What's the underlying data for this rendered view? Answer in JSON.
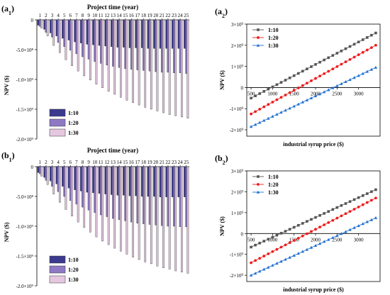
{
  "chart_data": [
    {
      "id": "a1",
      "type": "bar",
      "panel_label": "(a",
      "panel_sub": "1",
      "title": "Project time (year)",
      "ylabel": "NPV ($)",
      "categories": [
        "1",
        "2",
        "3",
        "4",
        "5",
        "6",
        "7",
        "8",
        "9",
        "10",
        "11",
        "12",
        "13",
        "14",
        "15",
        "16",
        "17",
        "18",
        "19",
        "20",
        "21",
        "22",
        "23",
        "24",
        "25"
      ],
      "ylim": [
        -2000000000.0,
        0
      ],
      "yticks": [
        0,
        -500000000.0,
        -1000000000.0,
        -1500000000.0,
        -2000000000.0
      ],
      "ytick_labels": [
        "0",
        "-5.0×10⁸",
        "-1.0×10⁹",
        "-1.5×10⁹",
        "-2.0×10⁹"
      ],
      "legend": "bottom-left",
      "series": [
        {
          "name": "1:10",
          "color": "#3b3a8f",
          "values": [
            -90000000.0,
            -160000000.0,
            -220000000.0,
            -270000000.0,
            -310000000.0,
            -340000000.0,
            -370000000.0,
            -390000000.0,
            -410000000.0,
            -420000000.0,
            -430000000.0,
            -440000000.0,
            -450000000.0,
            -460000000.0,
            -460000000.0,
            -470000000.0,
            -470000000.0,
            -470000000.0,
            -480000000.0,
            -480000000.0,
            -480000000.0,
            -480000000.0,
            -480000000.0,
            -480000000.0,
            -480000000.0
          ]
        },
        {
          "name": "1:20",
          "color": "#8f79c4",
          "values": [
            -110000000.0,
            -210000000.0,
            -290000000.0,
            -380000000.0,
            -450000000.0,
            -510000000.0,
            -570000000.0,
            -620000000.0,
            -660000000.0,
            -700000000.0,
            -730000000.0,
            -760000000.0,
            -780000000.0,
            -800000000.0,
            -820000000.0,
            -830000000.0,
            -840000000.0,
            -850000000.0,
            -860000000.0,
            -870000000.0,
            -880000000.0,
            -880000000.0,
            -890000000.0,
            -890000000.0,
            -900000000.0
          ]
        },
        {
          "name": "1:30",
          "color": "#e5c8e0",
          "values": [
            -140000000.0,
            -270000000.0,
            -430000000.0,
            -550000000.0,
            -670000000.0,
            -770000000.0,
            -860000000.0,
            -940000000.0,
            -1010000000.0,
            -1080000000.0,
            -1140000000.0,
            -1200000000.0,
            -1250000000.0,
            -1300000000.0,
            -1350000000.0,
            -1390000000.0,
            -1430000000.0,
            -1470000000.0,
            -1500000000.0,
            -1530000000.0,
            -1560000000.0,
            -1590000000.0,
            -1610000000.0,
            -1630000000.0,
            -1650000000.0
          ]
        }
      ]
    },
    {
      "id": "a2",
      "type": "line",
      "panel_label": "(a",
      "panel_sub": "2",
      "xlabel": "industrial syrup price ($)",
      "ylabel": "NPV ($)",
      "xlim": [
        400,
        3500
      ],
      "ylim": [
        -2300000000.0,
        3000000000.0
      ],
      "xticks": [
        500,
        1000,
        1500,
        2000,
        2500,
        3000
      ],
      "yticks": [
        3000000000.0,
        2000000000.0,
        1000000000.0,
        0,
        -1000000000.0,
        -2000000000.0
      ],
      "ytick_base": [
        "3×10",
        "2×10",
        "1×10",
        "0",
        "-1×10",
        "-2×10"
      ],
      "ytick_exp": [
        "9",
        "9",
        "9",
        "",
        "9",
        "9"
      ],
      "legend": "top-left",
      "x_range": [
        500,
        3400
      ],
      "series": [
        {
          "name": "1:10",
          "color": "#555555",
          "marker": "square",
          "y_start": -500000000.0,
          "y_end": 2580000000.0
        },
        {
          "name": "1:20",
          "color": "#ee1c1c",
          "marker": "circle",
          "y_start": -1250000000.0,
          "y_end": 2000000000.0
        },
        {
          "name": "1:30",
          "color": "#1f6fd1",
          "marker": "triangle",
          "y_start": -1850000000.0,
          "y_end": 950000000.0
        }
      ]
    },
    {
      "id": "b1",
      "type": "bar",
      "panel_label": "(b",
      "panel_sub": "1",
      "title": "Project time (year)",
      "ylabel": "NPV ($)",
      "categories": [
        "1",
        "2",
        "3",
        "4",
        "5",
        "6",
        "7",
        "8",
        "9",
        "10",
        "11",
        "12",
        "13",
        "14",
        "15",
        "16",
        "17",
        "18",
        "19",
        "20",
        "21",
        "22",
        "23",
        "24",
        "25"
      ],
      "ylim": [
        -2000000000.0,
        0
      ],
      "yticks": [
        0,
        -500000000.0,
        -1000000000.0,
        -1500000000.0,
        -2000000000.0
      ],
      "ytick_labels": [
        "0",
        "-5.0×10⁸",
        "-1.0×10⁹",
        "-1.5×10⁹",
        "-2.0×10⁹"
      ],
      "legend": "bottom-left",
      "series": [
        {
          "name": "1:10",
          "color": "#3b3a8f",
          "values": [
            -100000000.0,
            -180000000.0,
            -240000000.0,
            -290000000.0,
            -330000000.0,
            -360000000.0,
            -390000000.0,
            -410000000.0,
            -430000000.0,
            -440000000.0,
            -450000000.0,
            -460000000.0,
            -470000000.0,
            -480000000.0,
            -480000000.0,
            -490000000.0,
            -490000000.0,
            -500000000.0,
            -500000000.0,
            -500000000.0,
            -510000000.0,
            -510000000.0,
            -510000000.0,
            -510000000.0,
            -510000000.0
          ]
        },
        {
          "name": "1:20",
          "color": "#8f79c4",
          "values": [
            -120000000.0,
            -230000000.0,
            -330000000.0,
            -420000000.0,
            -500000000.0,
            -570000000.0,
            -630000000.0,
            -680000000.0,
            -730000000.0,
            -770000000.0,
            -810000000.0,
            -840000000.0,
            -870000000.0,
            -890000000.0,
            -910000000.0,
            -930000000.0,
            -950000000.0,
            -960000000.0,
            -970000000.0,
            -980000000.0,
            -990000000.0,
            -1000000000.0,
            -1000000000.0,
            -1010000000.0,
            -1010000000.0
          ]
        },
        {
          "name": "1:30",
          "color": "#e5c8e0",
          "values": [
            -160000000.0,
            -300000000.0,
            -460000000.0,
            -600000000.0,
            -720000000.0,
            -830000000.0,
            -930000000.0,
            -1020000000.0,
            -1100000000.0,
            -1180000000.0,
            -1250000000.0,
            -1310000000.0,
            -1370000000.0,
            -1420000000.0,
            -1470000000.0,
            -1520000000.0,
            -1560000000.0,
            -1600000000.0,
            -1630000000.0,
            -1670000000.0,
            -1700000000.0,
            -1720000000.0,
            -1750000000.0,
            -1770000000.0,
            -1790000000.0
          ]
        }
      ]
    },
    {
      "id": "b2",
      "type": "line",
      "panel_label": "(b",
      "panel_sub": "2",
      "xlabel": "industrial syrup price ($)",
      "ylabel": "NPV ($)",
      "xlim": [
        400,
        3500
      ],
      "ylim": [
        -2300000000.0,
        3000000000.0
      ],
      "xticks": [
        500,
        1000,
        1500,
        2000,
        2500,
        3000
      ],
      "yticks": [
        3000000000.0,
        2000000000.0,
        1000000000.0,
        0,
        -1000000000.0,
        -2000000000.0
      ],
      "ytick_base": [
        "3×10",
        "2×10",
        "1×10",
        "0",
        "-1×10",
        "-2×10"
      ],
      "ytick_exp": [
        "9",
        "9",
        "9",
        "",
        "9",
        "9"
      ],
      "legend": "top-left",
      "x_range": [
        500,
        3400
      ],
      "series": [
        {
          "name": "1:10",
          "color": "#555555",
          "marker": "square",
          "y_start": -650000000.0,
          "y_end": 2100000000.0
        },
        {
          "name": "1:20",
          "color": "#ee1c1c",
          "marker": "circle",
          "y_start": -1400000000.0,
          "y_end": 1700000000.0
        },
        {
          "name": "1:30",
          "color": "#1f6fd1",
          "marker": "triangle",
          "y_start": -2000000000.0,
          "y_end": 750000000.0
        }
      ]
    }
  ]
}
